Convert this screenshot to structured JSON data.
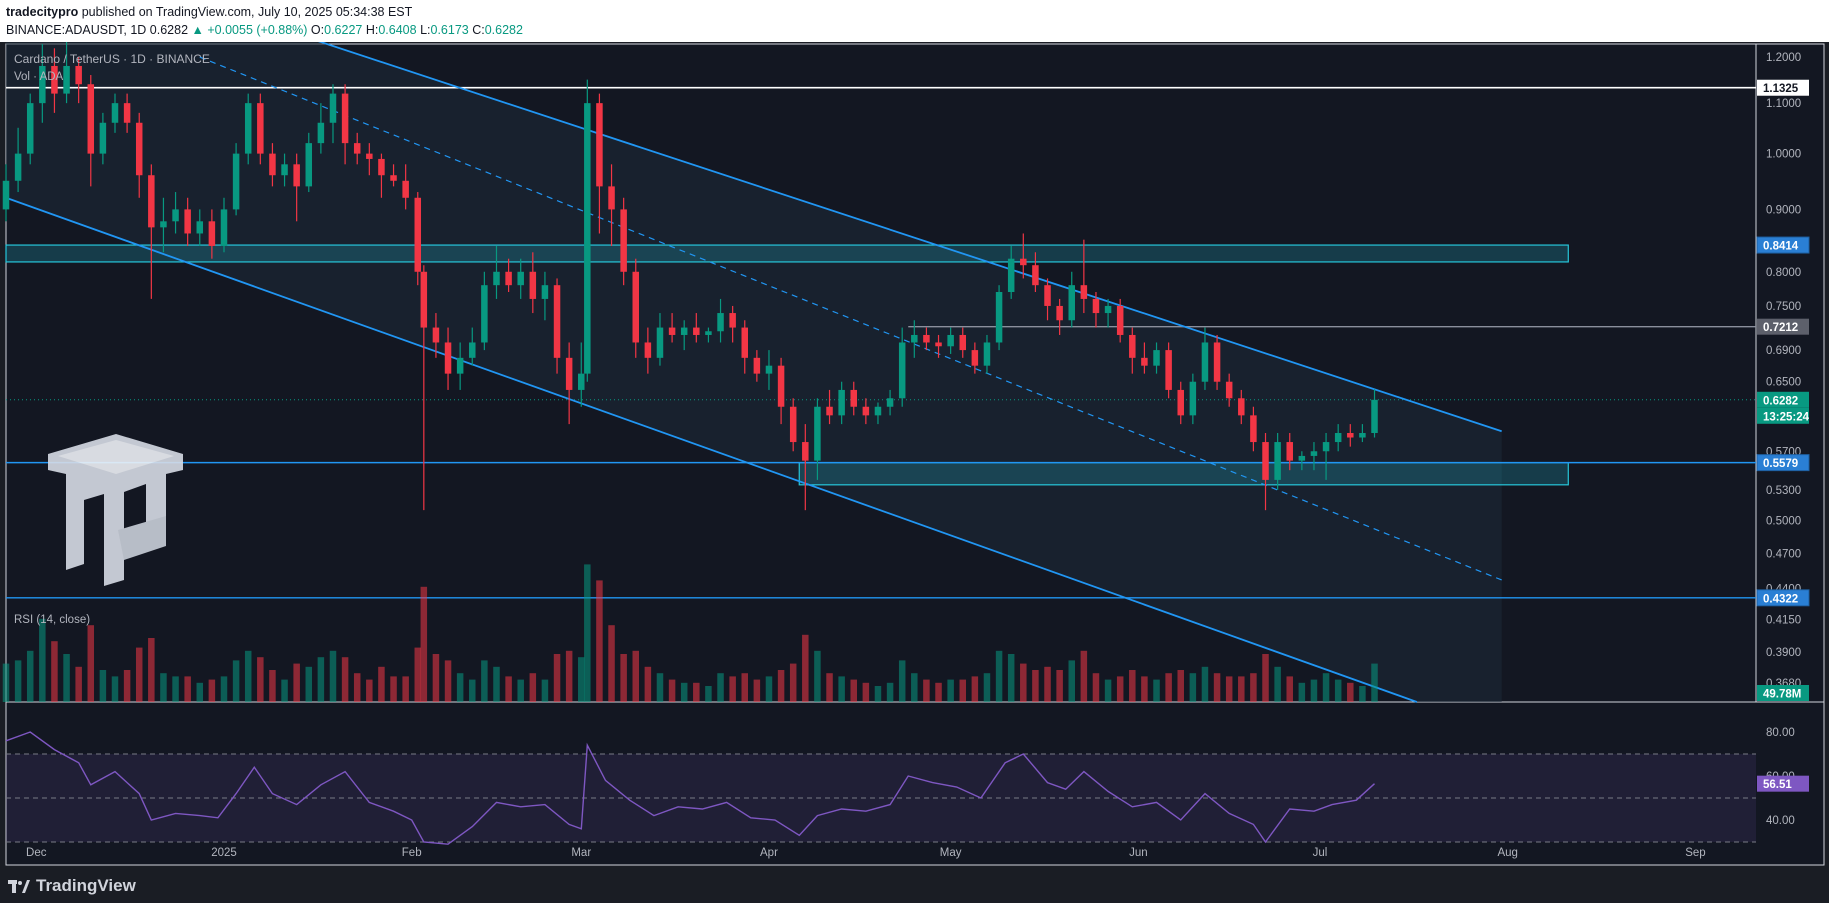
{
  "header": {
    "publisher": "tradecitypro",
    "published_text": "published on TradingView.com, July 10, 2025 05:34:38 EST",
    "symbol_line": "BINANCE:ADAUSDT, 1D",
    "last": "0.6282",
    "change": "▲ +0.0055 (+0.88%)",
    "o_label": "O:",
    "o_value": "0.6227",
    "h_label": "H:",
    "h_value": "0.6408",
    "l_label": "L:",
    "l_value": "0.6173",
    "c_label": "C:",
    "c_value": "0.6282"
  },
  "legend": {
    "title": "Cardano / TetherUS · 1D · BINANCE",
    "volume": "Vol · ADA",
    "rsi": "RSI (14, close)"
  },
  "footer": {
    "brand": "TradingView"
  },
  "colors": {
    "up": "#089981",
    "down": "#f23645",
    "line": "#2196f3",
    "zone": "#26c6da",
    "rsi": "#7e57c2",
    "bg": "#131722"
  },
  "chart_data": {
    "type": "candlestick",
    "price_axis": {
      "scale": "log",
      "range": [
        0.355,
        1.23
      ],
      "ticks": [
        "1.2000",
        "1.1000",
        "1.0000",
        "0.9000",
        "0.8000",
        "0.7500",
        "0.6900",
        "0.6500",
        "0.5700",
        "0.5300",
        "0.5000",
        "0.4700",
        "0.4400",
        "0.4150",
        "0.3900",
        "0.3680"
      ],
      "tick_values": [
        1.2,
        1.1,
        1.0,
        0.9,
        0.8,
        0.75,
        0.69,
        0.65,
        0.57,
        0.53,
        0.5,
        0.47,
        0.44,
        0.415,
        0.39,
        0.368
      ]
    },
    "time_axis": {
      "labels": [
        "Dec",
        "2025",
        "Feb",
        "Mar",
        "Apr",
        "May",
        "Jun",
        "Jul",
        "Aug",
        "Sep"
      ],
      "dates": [
        "2024-12-01",
        "2025-01-01",
        "2025-02-01",
        "2025-03-01",
        "2025-04-01",
        "2025-05-01",
        "2025-06-01",
        "2025-07-01",
        "2025-08-01",
        "2025-09-01"
      ]
    },
    "price_labels": [
      {
        "text": "1.1325",
        "value": 1.1325,
        "style": "white"
      },
      {
        "text": "0.8414",
        "value": 0.8414,
        "style": "blue"
      },
      {
        "text": "0.7212",
        "value": 0.7212,
        "style": "gray"
      },
      {
        "text": "0.6282",
        "value": 0.6282,
        "style": "green"
      },
      {
        "text": "13:25:24",
        "value": 0.6282,
        "style": "green-sub"
      },
      {
        "text": "0.5579",
        "value": 0.5579,
        "style": "blue"
      },
      {
        "text": "0.4322",
        "value": 0.4322,
        "style": "blue"
      },
      {
        "text": "49.78M",
        "value": null,
        "style": "volume"
      }
    ],
    "horizontal_lines": [
      1.1325,
      0.7212,
      0.5579,
      0.4322
    ],
    "zones": [
      {
        "from": "2024-11-26",
        "to": "2025-08-11",
        "low": 0.815,
        "high": 0.8414
      },
      {
        "from": "2025-04-06",
        "to": "2025-08-11",
        "low": 0.535,
        "high": 0.5579
      }
    ],
    "channel": {
      "upper": [
        [
          "2025-01-18",
          1.23
        ],
        [
          "2025-07-31",
          0.592
        ]
      ],
      "lower": [
        [
          "2024-11-26",
          0.92
        ],
        [
          "2025-07-17",
          0.355
        ]
      ],
      "mid": [
        [
          "2024-12-28",
          1.2
        ],
        [
          "2025-07-31",
          0.447
        ]
      ]
    },
    "rsi": {
      "range": [
        20,
        90
      ],
      "ticks": [
        "80.00",
        "60.00",
        "40.00"
      ],
      "tick_values": [
        80,
        60,
        40
      ],
      "bands": [
        70,
        50,
        30
      ],
      "current": "56.51",
      "current_value": 56.51
    },
    "candles": [
      [
        "2024-11-26",
        0.9,
        0.98,
        0.88,
        0.95,
        1.2
      ],
      [
        "2024-11-28",
        0.95,
        1.05,
        0.93,
        1.0,
        1.3
      ],
      [
        "2024-11-30",
        1.0,
        1.12,
        0.98,
        1.1,
        1.6
      ],
      [
        "2024-12-02",
        1.1,
        1.23,
        1.06,
        1.18,
        2.6
      ],
      [
        "2024-12-04",
        1.18,
        1.22,
        1.08,
        1.12,
        1.9
      ],
      [
        "2024-12-06",
        1.12,
        1.24,
        1.1,
        1.18,
        1.5
      ],
      [
        "2024-12-08",
        1.18,
        1.2,
        1.1,
        1.14,
        1.1
      ],
      [
        "2024-12-10",
        1.14,
        1.16,
        0.94,
        1.0,
        2.4
      ],
      [
        "2024-12-12",
        1.0,
        1.08,
        0.98,
        1.06,
        1.0
      ],
      [
        "2024-12-14",
        1.06,
        1.12,
        1.04,
        1.1,
        0.8
      ],
      [
        "2024-12-16",
        1.1,
        1.12,
        1.04,
        1.06,
        1.0
      ],
      [
        "2024-12-18",
        1.06,
        1.08,
        0.92,
        0.96,
        1.7
      ],
      [
        "2024-12-20",
        0.96,
        0.98,
        0.76,
        0.87,
        2.0
      ],
      [
        "2024-12-22",
        0.87,
        0.92,
        0.83,
        0.88,
        0.9
      ],
      [
        "2024-12-24",
        0.88,
        0.93,
        0.86,
        0.9,
        0.8
      ],
      [
        "2024-12-26",
        0.9,
        0.92,
        0.84,
        0.86,
        0.8
      ],
      [
        "2024-12-28",
        0.86,
        0.9,
        0.84,
        0.88,
        0.6
      ],
      [
        "2024-12-30",
        0.88,
        0.9,
        0.82,
        0.84,
        0.7
      ],
      [
        "2025-01-01",
        0.84,
        0.92,
        0.83,
        0.9,
        0.8
      ],
      [
        "2025-01-03",
        0.9,
        1.02,
        0.89,
        1.0,
        1.3
      ],
      [
        "2025-01-05",
        1.0,
        1.12,
        0.98,
        1.1,
        1.6
      ],
      [
        "2025-01-07",
        1.1,
        1.12,
        0.98,
        1.0,
        1.4
      ],
      [
        "2025-01-09",
        1.0,
        1.02,
        0.94,
        0.96,
        1.0
      ],
      [
        "2025-01-11",
        0.96,
        1.0,
        0.94,
        0.98,
        0.7
      ],
      [
        "2025-01-13",
        0.98,
        1.0,
        0.88,
        0.94,
        1.2
      ],
      [
        "2025-01-15",
        0.94,
        1.04,
        0.93,
        1.02,
        1.1
      ],
      [
        "2025-01-17",
        1.02,
        1.1,
        1.0,
        1.06,
        1.4
      ],
      [
        "2025-01-19",
        1.06,
        1.14,
        1.02,
        1.12,
        1.6
      ],
      [
        "2025-01-21",
        1.12,
        1.14,
        0.98,
        1.02,
        1.4
      ],
      [
        "2025-01-23",
        1.02,
        1.04,
        0.98,
        1.0,
        0.9
      ],
      [
        "2025-01-25",
        1.0,
        1.02,
        0.96,
        0.99,
        0.7
      ],
      [
        "2025-01-27",
        0.99,
        1.0,
        0.92,
        0.96,
        1.1
      ],
      [
        "2025-01-29",
        0.96,
        0.98,
        0.94,
        0.95,
        0.8
      ],
      [
        "2025-01-31",
        0.95,
        0.98,
        0.9,
        0.92,
        0.8
      ],
      [
        "2025-02-02",
        0.92,
        0.93,
        0.78,
        0.8,
        1.7
      ],
      [
        "2025-02-03",
        0.8,
        0.81,
        0.51,
        0.72,
        3.6
      ],
      [
        "2025-02-05",
        0.72,
        0.74,
        0.68,
        0.7,
        1.5
      ],
      [
        "2025-02-07",
        0.7,
        0.72,
        0.64,
        0.66,
        1.3
      ],
      [
        "2025-02-09",
        0.66,
        0.7,
        0.64,
        0.68,
        0.9
      ],
      [
        "2025-02-11",
        0.68,
        0.72,
        0.67,
        0.7,
        0.7
      ],
      [
        "2025-02-13",
        0.7,
        0.8,
        0.69,
        0.78,
        1.3
      ],
      [
        "2025-02-15",
        0.78,
        0.84,
        0.76,
        0.8,
        1.1
      ],
      [
        "2025-02-17",
        0.8,
        0.82,
        0.77,
        0.78,
        0.8
      ],
      [
        "2025-02-19",
        0.78,
        0.82,
        0.76,
        0.8,
        0.7
      ],
      [
        "2025-02-21",
        0.8,
        0.83,
        0.74,
        0.76,
        0.9
      ],
      [
        "2025-02-23",
        0.76,
        0.8,
        0.73,
        0.78,
        0.7
      ],
      [
        "2025-02-25",
        0.78,
        0.79,
        0.66,
        0.68,
        1.5
      ],
      [
        "2025-02-27",
        0.68,
        0.7,
        0.6,
        0.64,
        1.6
      ],
      [
        "2025-03-01",
        0.64,
        0.7,
        0.62,
        0.66,
        1.4
      ],
      [
        "2025-03-02",
        0.66,
        1.15,
        0.65,
        1.1,
        4.3
      ],
      [
        "2025-03-04",
        1.1,
        1.12,
        0.86,
        0.94,
        3.8
      ],
      [
        "2025-03-06",
        0.94,
        0.98,
        0.84,
        0.9,
        2.4
      ],
      [
        "2025-03-08",
        0.9,
        0.92,
        0.78,
        0.8,
        1.5
      ],
      [
        "2025-03-10",
        0.8,
        0.82,
        0.68,
        0.7,
        1.6
      ],
      [
        "2025-03-12",
        0.7,
        0.72,
        0.66,
        0.68,
        1.1
      ],
      [
        "2025-03-14",
        0.68,
        0.74,
        0.67,
        0.72,
        0.9
      ],
      [
        "2025-03-16",
        0.72,
        0.74,
        0.7,
        0.71,
        0.7
      ],
      [
        "2025-03-18",
        0.71,
        0.73,
        0.69,
        0.72,
        0.6
      ],
      [
        "2025-03-20",
        0.72,
        0.74,
        0.7,
        0.71,
        0.6
      ],
      [
        "2025-03-22",
        0.71,
        0.72,
        0.7,
        0.715,
        0.5
      ],
      [
        "2025-03-24",
        0.715,
        0.76,
        0.7,
        0.74,
        0.9
      ],
      [
        "2025-03-26",
        0.74,
        0.75,
        0.7,
        0.72,
        0.8
      ],
      [
        "2025-03-28",
        0.72,
        0.73,
        0.66,
        0.68,
        0.9
      ],
      [
        "2025-03-30",
        0.68,
        0.69,
        0.65,
        0.66,
        0.7
      ],
      [
        "2025-04-01",
        0.66,
        0.69,
        0.64,
        0.67,
        0.8
      ],
      [
        "2025-04-03",
        0.67,
        0.68,
        0.6,
        0.62,
        1.0
      ],
      [
        "2025-04-05",
        0.62,
        0.63,
        0.57,
        0.58,
        1.2
      ],
      [
        "2025-04-07",
        0.58,
        0.6,
        0.51,
        0.56,
        2.1
      ],
      [
        "2025-04-09",
        0.56,
        0.63,
        0.54,
        0.62,
        1.6
      ],
      [
        "2025-04-11",
        0.62,
        0.64,
        0.6,
        0.61,
        0.9
      ],
      [
        "2025-04-13",
        0.61,
        0.65,
        0.6,
        0.64,
        0.8
      ],
      [
        "2025-04-15",
        0.64,
        0.65,
        0.61,
        0.62,
        0.7
      ],
      [
        "2025-04-17",
        0.62,
        0.63,
        0.6,
        0.61,
        0.6
      ],
      [
        "2025-04-19",
        0.61,
        0.625,
        0.6,
        0.62,
        0.5
      ],
      [
        "2025-04-21",
        0.62,
        0.64,
        0.61,
        0.63,
        0.6
      ],
      [
        "2025-04-23",
        0.63,
        0.72,
        0.62,
        0.7,
        1.3
      ],
      [
        "2025-04-25",
        0.7,
        0.73,
        0.68,
        0.71,
        0.9
      ],
      [
        "2025-04-27",
        0.71,
        0.72,
        0.69,
        0.7,
        0.7
      ],
      [
        "2025-04-29",
        0.7,
        0.71,
        0.68,
        0.695,
        0.6
      ],
      [
        "2025-05-01",
        0.695,
        0.72,
        0.685,
        0.71,
        0.7
      ],
      [
        "2025-05-03",
        0.71,
        0.72,
        0.68,
        0.69,
        0.7
      ],
      [
        "2025-05-05",
        0.69,
        0.7,
        0.66,
        0.67,
        0.8
      ],
      [
        "2025-05-07",
        0.67,
        0.71,
        0.66,
        0.7,
        0.9
      ],
      [
        "2025-05-09",
        0.7,
        0.78,
        0.69,
        0.77,
        1.6
      ],
      [
        "2025-05-11",
        0.77,
        0.84,
        0.76,
        0.82,
        1.5
      ],
      [
        "2025-05-13",
        0.82,
        0.86,
        0.79,
        0.81,
        1.2
      ],
      [
        "2025-05-15",
        0.81,
        0.83,
        0.77,
        0.78,
        1.0
      ],
      [
        "2025-05-17",
        0.78,
        0.79,
        0.73,
        0.75,
        1.1
      ],
      [
        "2025-05-19",
        0.75,
        0.76,
        0.71,
        0.73,
        1.0
      ],
      [
        "2025-05-21",
        0.73,
        0.8,
        0.72,
        0.78,
        1.3
      ],
      [
        "2025-05-23",
        0.78,
        0.85,
        0.74,
        0.76,
        1.6
      ],
      [
        "2025-05-25",
        0.76,
        0.77,
        0.72,
        0.74,
        0.9
      ],
      [
        "2025-05-27",
        0.74,
        0.76,
        0.72,
        0.75,
        0.7
      ],
      [
        "2025-05-29",
        0.75,
        0.76,
        0.7,
        0.71,
        0.8
      ],
      [
        "2025-05-31",
        0.71,
        0.72,
        0.66,
        0.68,
        1.0
      ],
      [
        "2025-06-02",
        0.68,
        0.7,
        0.66,
        0.67,
        0.8
      ],
      [
        "2025-06-04",
        0.67,
        0.7,
        0.66,
        0.69,
        0.7
      ],
      [
        "2025-06-06",
        0.69,
        0.7,
        0.63,
        0.64,
        0.9
      ],
      [
        "2025-06-08",
        0.64,
        0.65,
        0.6,
        0.61,
        1.0
      ],
      [
        "2025-06-10",
        0.61,
        0.66,
        0.6,
        0.65,
        0.9
      ],
      [
        "2025-06-12",
        0.65,
        0.72,
        0.64,
        0.7,
        1.1
      ],
      [
        "2025-06-14",
        0.7,
        0.71,
        0.64,
        0.65,
        0.9
      ],
      [
        "2025-06-16",
        0.65,
        0.66,
        0.62,
        0.63,
        0.8
      ],
      [
        "2025-06-18",
        0.63,
        0.64,
        0.6,
        0.61,
        0.8
      ],
      [
        "2025-06-20",
        0.61,
        0.62,
        0.57,
        0.58,
        0.9
      ],
      [
        "2025-06-22",
        0.58,
        0.59,
        0.51,
        0.54,
        1.5
      ],
      [
        "2025-06-24",
        0.54,
        0.59,
        0.53,
        0.58,
        1.1
      ],
      [
        "2025-06-26",
        0.58,
        0.59,
        0.55,
        0.56,
        0.8
      ],
      [
        "2025-06-28",
        0.56,
        0.57,
        0.55,
        0.565,
        0.6
      ],
      [
        "2025-06-30",
        0.565,
        0.58,
        0.55,
        0.57,
        0.7
      ],
      [
        "2025-07-02",
        0.57,
        0.59,
        0.54,
        0.58,
        0.9
      ],
      [
        "2025-07-04",
        0.58,
        0.6,
        0.57,
        0.59,
        0.7
      ],
      [
        "2025-07-06",
        0.59,
        0.6,
        0.575,
        0.585,
        0.6
      ],
      [
        "2025-07-08",
        0.585,
        0.6,
        0.58,
        0.59,
        0.5
      ],
      [
        "2025-07-10",
        0.59,
        0.6408,
        0.585,
        0.6282,
        1.2
      ]
    ],
    "rsi_points": [
      [
        "2024-11-26",
        76
      ],
      [
        "2024-11-30",
        80
      ],
      [
        "2024-12-04",
        72
      ],
      [
        "2024-12-08",
        66
      ],
      [
        "2024-12-10",
        56
      ],
      [
        "2024-12-14",
        62
      ],
      [
        "2024-12-18",
        52
      ],
      [
        "2024-12-20",
        40
      ],
      [
        "2024-12-24",
        43
      ],
      [
        "2024-12-28",
        42
      ],
      [
        "2024-12-31",
        41
      ],
      [
        "2025-01-03",
        52
      ],
      [
        "2025-01-06",
        64
      ],
      [
        "2025-01-09",
        52
      ],
      [
        "2025-01-13",
        47
      ],
      [
        "2025-01-17",
        56
      ],
      [
        "2025-01-21",
        62
      ],
      [
        "2025-01-25",
        48
      ],
      [
        "2025-01-29",
        44
      ],
      [
        "2025-02-01",
        40
      ],
      [
        "2025-02-03",
        30
      ],
      [
        "2025-02-07",
        29
      ],
      [
        "2025-02-11",
        37
      ],
      [
        "2025-02-15",
        48
      ],
      [
        "2025-02-19",
        46
      ],
      [
        "2025-02-23",
        47
      ],
      [
        "2025-02-27",
        38
      ],
      [
        "2025-03-01",
        36
      ],
      [
        "2025-03-02",
        74
      ],
      [
        "2025-03-05",
        58
      ],
      [
        "2025-03-09",
        49
      ],
      [
        "2025-03-13",
        42
      ],
      [
        "2025-03-17",
        46
      ],
      [
        "2025-03-21",
        45
      ],
      [
        "2025-03-25",
        48
      ],
      [
        "2025-03-29",
        41
      ],
      [
        "2025-04-02",
        40
      ],
      [
        "2025-04-06",
        33
      ],
      [
        "2025-04-09",
        42
      ],
      [
        "2025-04-13",
        45
      ],
      [
        "2025-04-17",
        44
      ],
      [
        "2025-04-21",
        47
      ],
      [
        "2025-04-24",
        60
      ],
      [
        "2025-04-28",
        57
      ],
      [
        "2025-05-02",
        55
      ],
      [
        "2025-05-06",
        50
      ],
      [
        "2025-05-10",
        66
      ],
      [
        "2025-05-13",
        70
      ],
      [
        "2025-05-17",
        57
      ],
      [
        "2025-05-20",
        54
      ],
      [
        "2025-05-23",
        62
      ],
      [
        "2025-05-27",
        53
      ],
      [
        "2025-05-31",
        46
      ],
      [
        "2025-06-04",
        48
      ],
      [
        "2025-06-08",
        40
      ],
      [
        "2025-06-12",
        52
      ],
      [
        "2025-06-16",
        43
      ],
      [
        "2025-06-20",
        38
      ],
      [
        "2025-06-22",
        30
      ],
      [
        "2025-06-26",
        45
      ],
      [
        "2025-06-30",
        44
      ],
      [
        "2025-07-03",
        47
      ],
      [
        "2025-07-07",
        49
      ],
      [
        "2025-07-10",
        56.51
      ]
    ]
  }
}
